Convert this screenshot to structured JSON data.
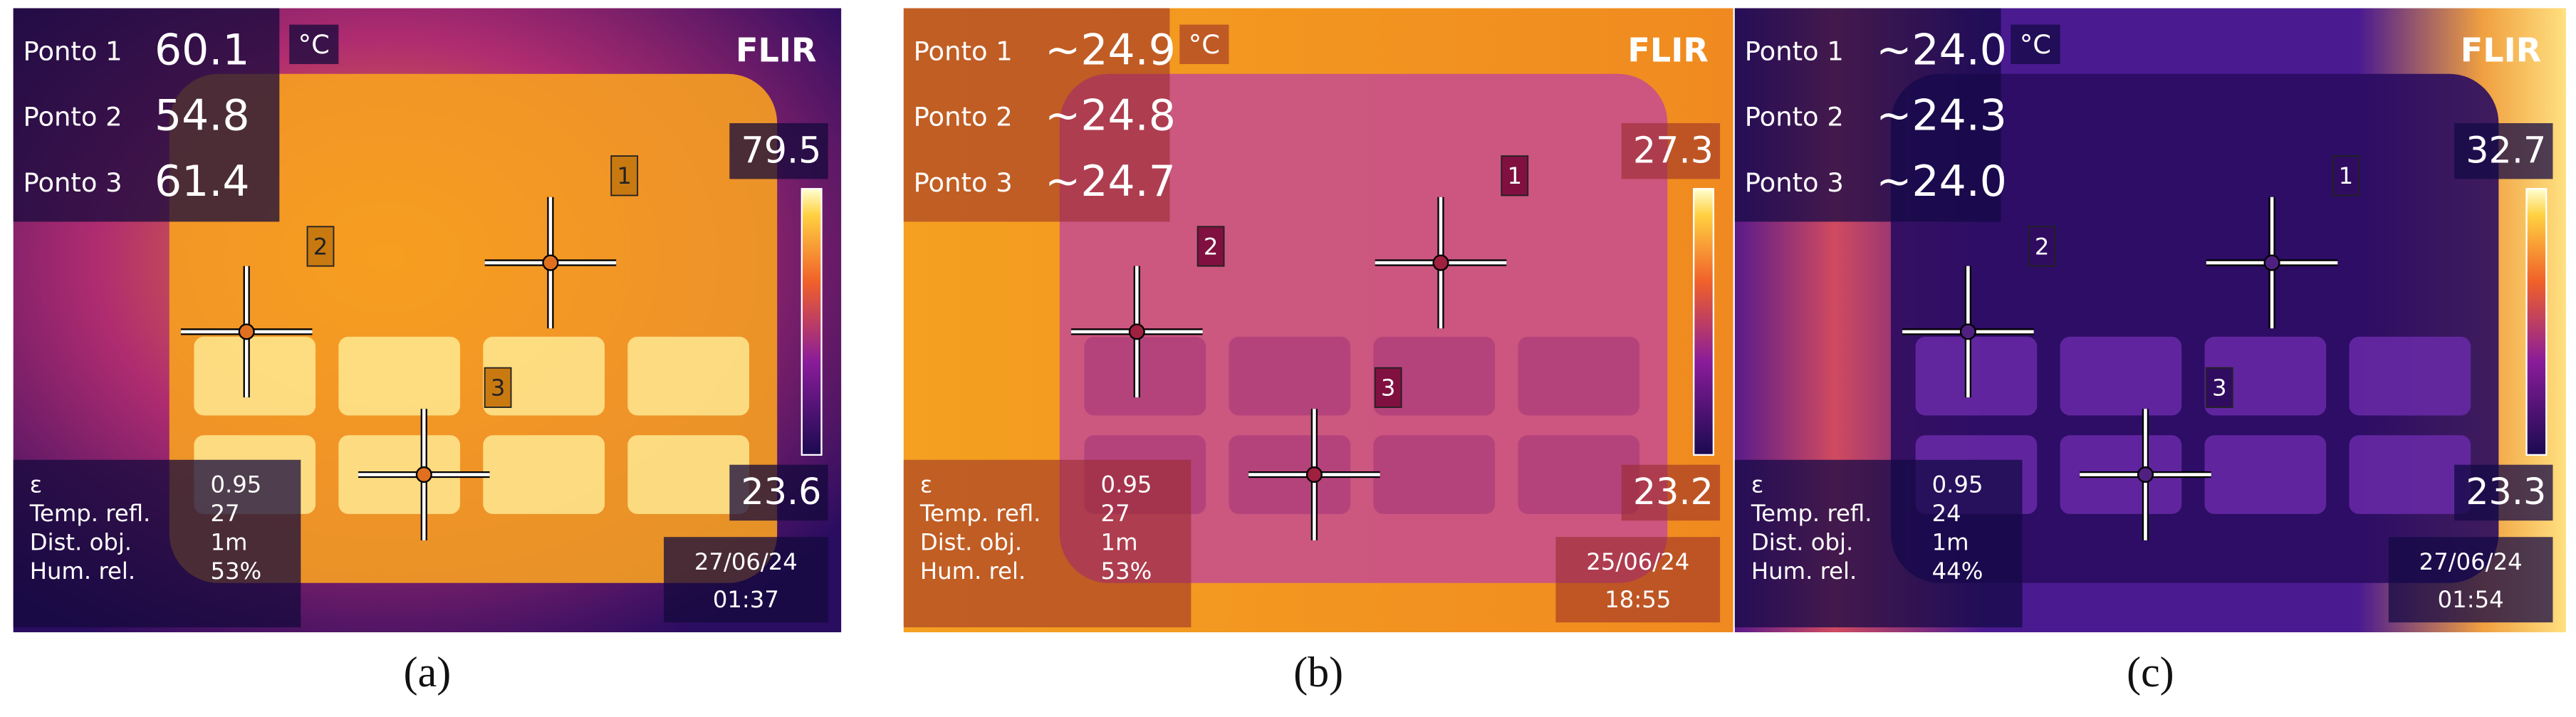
{
  "panels": [
    {
      "points": [
        {
          "label": "Ponto 1",
          "value": "60.1"
        },
        {
          "label": "Ponto 2",
          "value": "54.8"
        },
        {
          "label": "Ponto 3",
          "value": "61.4"
        }
      ],
      "unit": "°C",
      "brand": "FLIR",
      "scale_max": "79.5",
      "scale_min": "23.6",
      "params": [
        {
          "label": "ε",
          "value": "0.95"
        },
        {
          "label": "Temp. refl.",
          "value": "27"
        },
        {
          "label": "Dist. obj.",
          "value": "1m"
        },
        {
          "label": "Hum. rel.",
          "value": "53%"
        }
      ],
      "date": "27/06/24",
      "time": "01:37",
      "markers": [
        "1",
        "2",
        "3"
      ],
      "caption": "(a)"
    },
    {
      "points": [
        {
          "label": "Ponto 1",
          "value": "~24.9"
        },
        {
          "label": "Ponto 2",
          "value": "~24.8"
        },
        {
          "label": "Ponto 3",
          "value": "~24.7"
        }
      ],
      "unit": "°C",
      "brand": "FLIR",
      "scale_max": "27.3",
      "scale_min": "23.2",
      "params": [
        {
          "label": "ε",
          "value": "0.95"
        },
        {
          "label": "Temp. refl.",
          "value": "27"
        },
        {
          "label": "Dist. obj.",
          "value": "1m"
        },
        {
          "label": "Hum. rel.",
          "value": "53%"
        }
      ],
      "date": "25/06/24",
      "time": "18:55",
      "markers": [
        "1",
        "2",
        "3"
      ],
      "caption": "(b)"
    },
    {
      "points": [
        {
          "label": "Ponto 1",
          "value": "~24.0"
        },
        {
          "label": "Ponto 2",
          "value": "~24.3"
        },
        {
          "label": "Ponto 3",
          "value": "~24.0"
        }
      ],
      "unit": "°C",
      "brand": "FLIR",
      "scale_max": "32.7",
      "scale_min": "23.3",
      "params": [
        {
          "label": "ε",
          "value": "0.95"
        },
        {
          "label": "Temp. refl.",
          "value": "24"
        },
        {
          "label": "Dist. obj.",
          "value": "1m"
        },
        {
          "label": "Hum. rel.",
          "value": "44%"
        }
      ],
      "date": "27/06/24",
      "time": "01:54",
      "markers": [
        "1",
        "2",
        "3"
      ],
      "caption": "(c)"
    }
  ]
}
